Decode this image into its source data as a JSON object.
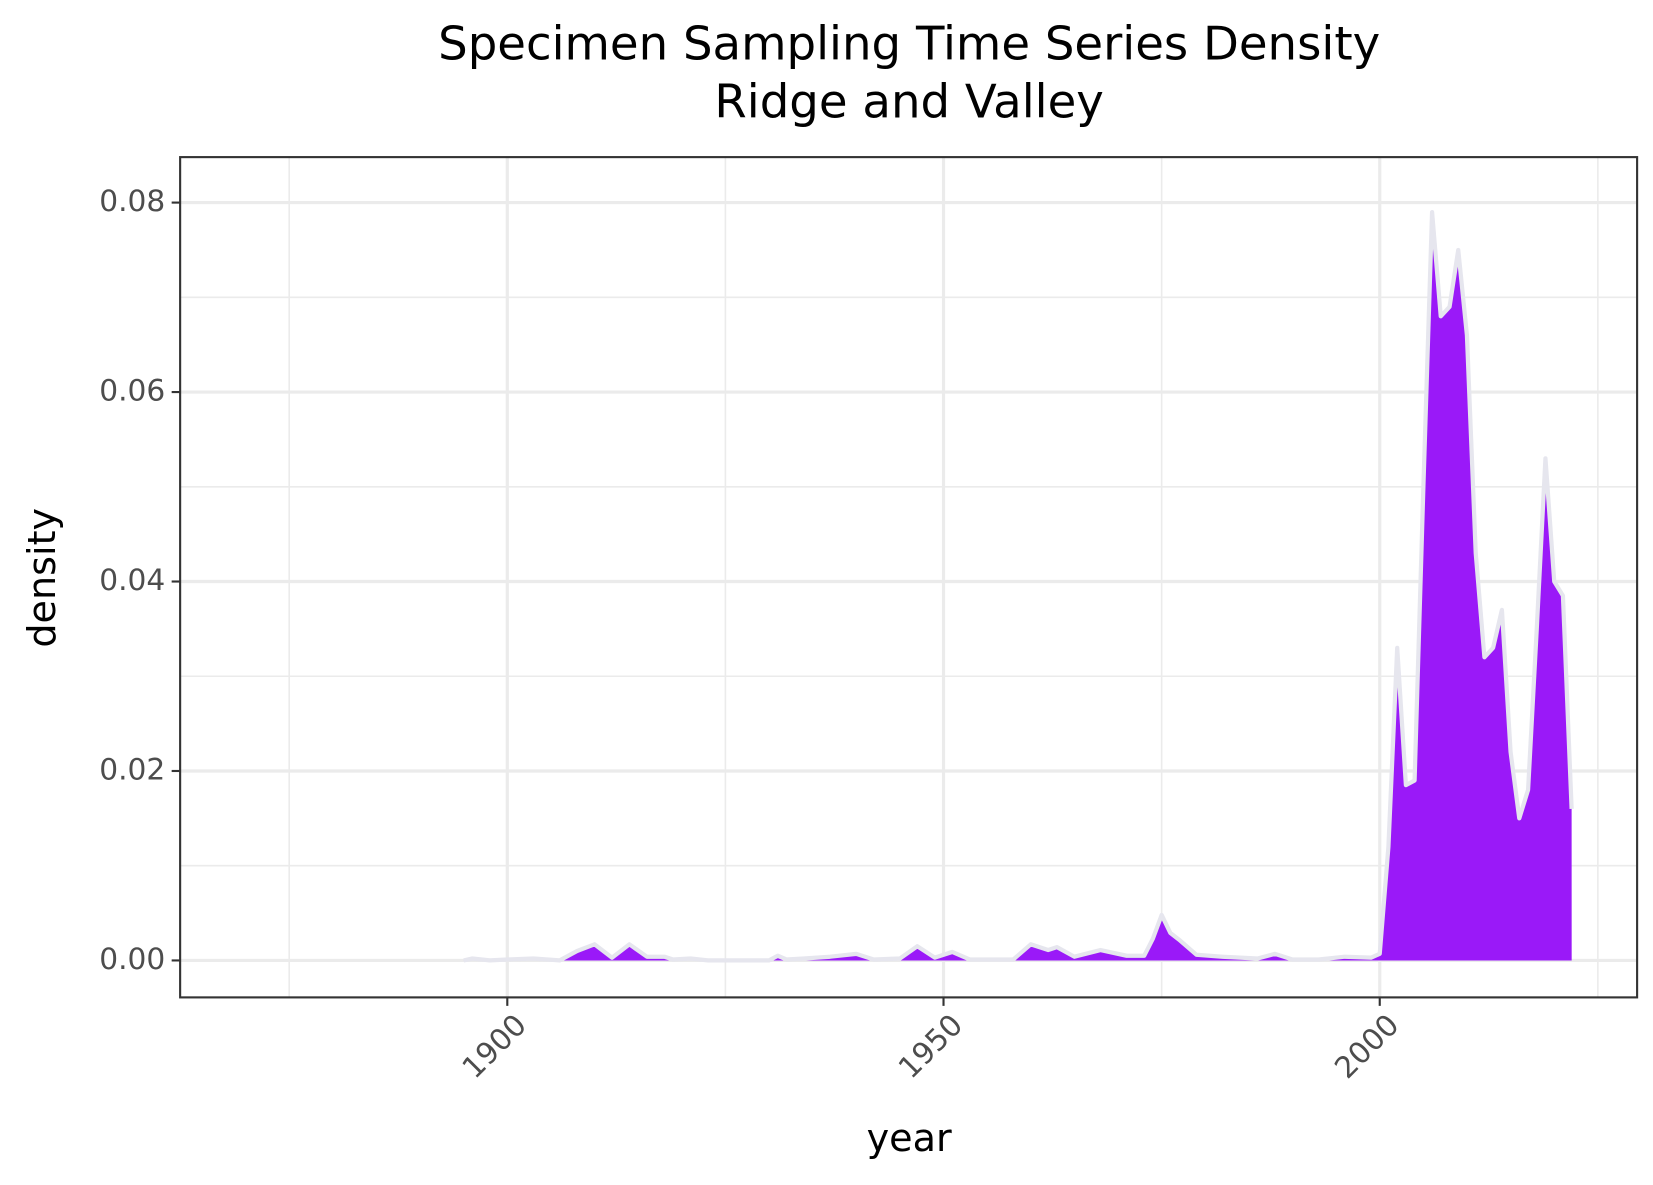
{
  "chart_data": {
    "type": "area",
    "title": "Specimen Sampling Time Series Density",
    "subtitle": "Ridge and Valley",
    "x_label": "year",
    "y_label": "density",
    "color": "#9a19f8",
    "line_color": "#e6e6ee",
    "x": [
      1895,
      1896,
      1898,
      1900,
      1903,
      1906,
      1908,
      1910,
      1912,
      1914,
      1916,
      1918,
      1919,
      1921,
      1923,
      1930,
      1931,
      1932,
      1934,
      1937,
      1940,
      1942,
      1945,
      1947,
      1949,
      1951,
      1953,
      1958,
      1960,
      1962,
      1963,
      1965,
      1968,
      1971,
      1973,
      1974,
      1975,
      1976,
      1977,
      1979,
      1982,
      1984,
      1986,
      1988,
      1990,
      1993,
      1996,
      1999,
      2000,
      2001,
      2002,
      2003,
      2004,
      2005,
      2006,
      2007,
      2008,
      2009,
      2010,
      2011,
      2012,
      2013,
      2014,
      2015,
      2016,
      2017,
      2018,
      2019,
      2020,
      2021,
      2022
    ],
    "values": [
      0,
      0.0002,
      0,
      0.0001,
      0.0002,
      0,
      0.001,
      0.0017,
      0.0003,
      0.0017,
      0.0004,
      0.0004,
      0.0001,
      0.0002,
      0,
      0,
      0.0005,
      0.0001,
      0.0002,
      0.0004,
      0.0007,
      0.0001,
      0.0002,
      0.0015,
      0.0003,
      0.0009,
      0.0001,
      0.0001,
      0.0017,
      0.0011,
      0.0014,
      0.0004,
      0.0011,
      0.0005,
      0.0005,
      0.0023,
      0.0048,
      0.0029,
      0.0022,
      0.0006,
      0.0004,
      0.0003,
      0.0002,
      0.0007,
      0.0001,
      0.0001,
      0.0004,
      0.0003,
      0.0007,
      0.012,
      0.033,
      0.0185,
      0.019,
      0.05,
      0.079,
      0.068,
      0.069,
      0.075,
      0.066,
      0.043,
      0.032,
      0.033,
      0.037,
      0.022,
      0.015,
      0.018,
      0.035,
      0.053,
      0.04,
      0.0385,
      0.016
    ],
    "xlim": [
      1862.5,
      2029.5
    ],
    "ylim": [
      -0.0039,
      0.0848
    ],
    "xticks": [
      1900,
      1950,
      2000
    ],
    "yticks": [
      {
        "value": 0,
        "label": "0.00"
      },
      0.02,
      0.04,
      0.06,
      0.08
    ],
    "xminor": [
      1875,
      1925,
      1975,
      2025
    ],
    "yminor": [
      0.01,
      0.03,
      0.05,
      0.07
    ],
    "grid": true
  }
}
